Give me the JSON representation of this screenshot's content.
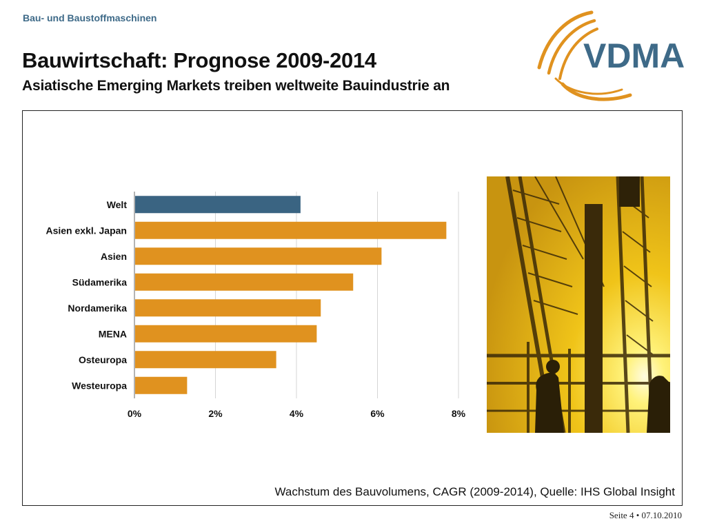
{
  "header": {
    "section_label": "Bau- und Baustoffmaschinen",
    "title": "Bauwirtschaft: Prognose 2009-2014",
    "subtitle": "Asiatische Emerging Markets treiben weltweite Bauindustrie an"
  },
  "logo": {
    "text": "VDMA"
  },
  "colors": {
    "highlight_bar": "#3a6482",
    "bar": "#e0921f",
    "logo_text": "#3e6a88",
    "logo_arcs": "#e0921f"
  },
  "chart_data": {
    "type": "bar",
    "orientation": "horizontal",
    "categories": [
      "Welt",
      "Asien exkl. Japan",
      "Asien",
      "Südamerika",
      "Nordamerika",
      "MENA",
      "Osteuropa",
      "Westeuropa"
    ],
    "values": [
      4.1,
      7.7,
      6.1,
      5.4,
      4.6,
      4.5,
      3.5,
      1.3
    ],
    "highlight": [
      "Welt"
    ],
    "xlim": [
      0,
      8
    ],
    "xticks": [
      0,
      2,
      4,
      6,
      8
    ],
    "xtick_labels": [
      "0%",
      "2%",
      "4%",
      "6%",
      "8%"
    ],
    "grid": "vertical"
  },
  "photo": {
    "icon": "construction-photo"
  },
  "caption": "Wachstum des Bauvolumens, CAGR (2009-2014), Quelle: IHS Global Insight",
  "footer": "Seite 4 • 07.10.2010"
}
